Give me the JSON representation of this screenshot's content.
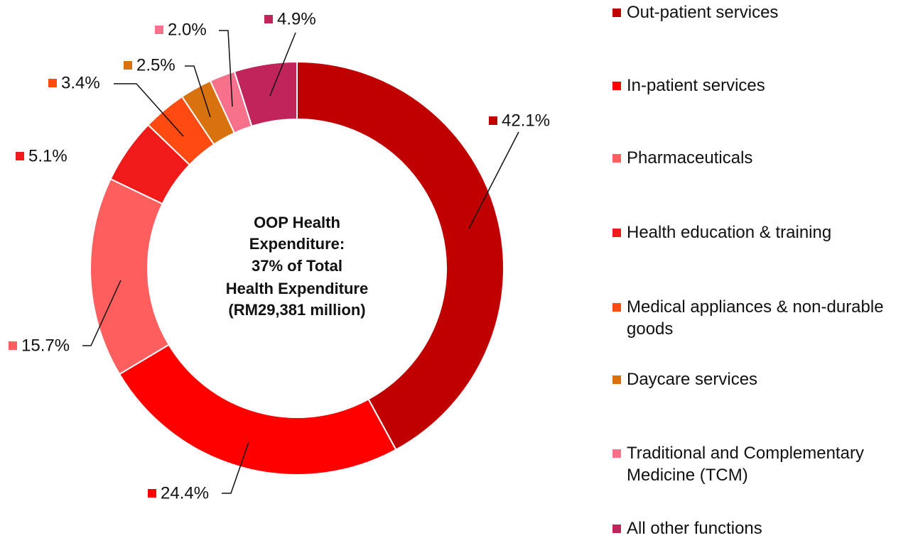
{
  "chart_data": {
    "type": "donut",
    "annotation": [
      "OOP Health",
      "Expenditure:",
      "37% of Total",
      "Health Expenditure",
      "(RM29,381 million)"
    ],
    "categories": [
      "Out-patient services",
      "In-patient services",
      "Pharmaceuticals",
      "Health education & training",
      "Medical appliances & non-durable goods",
      "Daycare services",
      "Traditional and Complementary Medicine (TCM)",
      "All other functions"
    ],
    "values": [
      42.1,
      24.4,
      15.7,
      5.1,
      3.4,
      2.5,
      2.0,
      4.9
    ],
    "value_labels": [
      "42.1%",
      "24.4%",
      "15.7%",
      "5.1%",
      "3.4%",
      "2.5%",
      "2.0%",
      "4.9%"
    ],
    "colors": [
      "#c00000",
      "#ff0000",
      "#ff5e5e",
      "#f01a1a",
      "#ff4a12",
      "#d8720e",
      "#f7708c",
      "#c0245a"
    ],
    "legend": "right"
  }
}
